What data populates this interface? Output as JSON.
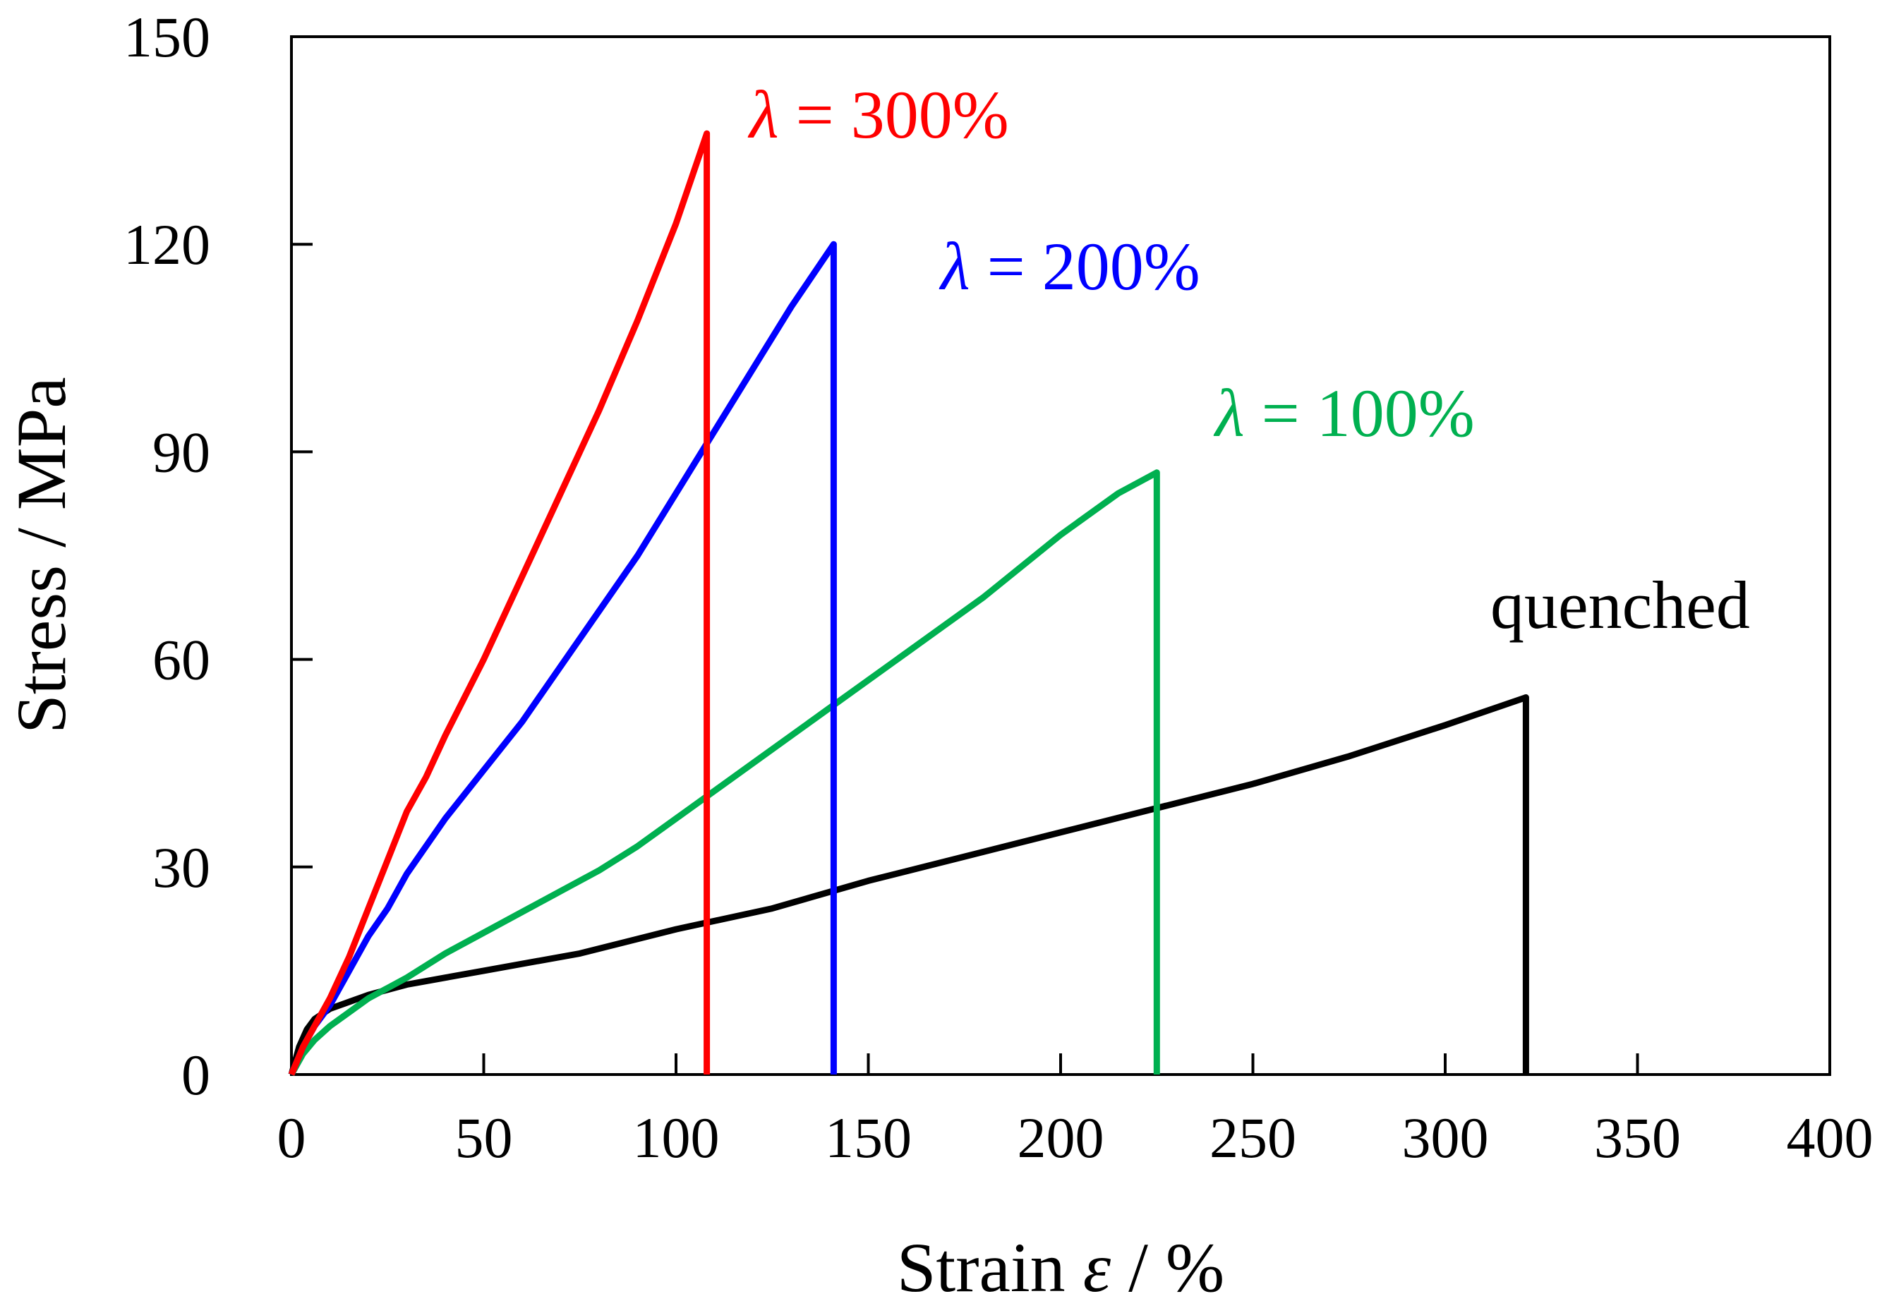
{
  "chart_data": {
    "type": "line",
    "xlabel_prefix": "Strain ",
    "xlabel_symbol": "ε",
    "xlabel_suffix": " / %",
    "ylabel": "Stress / MPa",
    "xlim": [
      0,
      400
    ],
    "ylim": [
      0,
      150
    ],
    "xticks": [
      "0",
      "50",
      "100",
      "150",
      "200",
      "250",
      "300",
      "350",
      "400"
    ],
    "yticks": [
      "0",
      "30",
      "60",
      "90",
      "120",
      "150"
    ],
    "grid": false,
    "series": [
      {
        "name": "λ = 300%",
        "symbol": "λ",
        "suffix": " = 300%",
        "color": "#ff0000",
        "x": [
          0,
          3,
          6,
          10,
          15,
          20,
          25,
          30,
          35,
          40,
          50,
          60,
          70,
          80,
          90,
          100,
          108,
          108
        ],
        "y": [
          0,
          4,
          7,
          11,
          17,
          24,
          31,
          38,
          43,
          49,
          60,
          72,
          84,
          96,
          109,
          123,
          136,
          0
        ]
      },
      {
        "name": "λ = 200%",
        "symbol": "λ",
        "suffix": " = 200%",
        "color": "#0000ff",
        "x": [
          0,
          3,
          6,
          10,
          15,
          20,
          25,
          30,
          40,
          50,
          60,
          70,
          80,
          90,
          100,
          110,
          120,
          130,
          141,
          141
        ],
        "y": [
          0,
          4,
          7,
          10,
          15,
          20,
          24,
          29,
          37,
          44,
          51,
          59,
          67,
          75,
          84,
          93,
          102,
          111,
          120,
          0
        ]
      },
      {
        "name": "λ = 100%",
        "symbol": "λ",
        "suffix": " = 100%",
        "color": "#00b050",
        "x": [
          0,
          3,
          6,
          10,
          15,
          20,
          25,
          30,
          40,
          50,
          60,
          70,
          80,
          90,
          100,
          120,
          140,
          160,
          180,
          200,
          215,
          225,
          225
        ],
        "y": [
          0,
          3,
          5,
          7,
          9,
          11,
          12.5,
          14,
          17.5,
          20.5,
          23.5,
          26.5,
          29.5,
          33,
          37,
          45,
          53,
          61,
          69,
          78,
          84,
          87,
          0
        ]
      },
      {
        "name": "quenched",
        "symbol": "",
        "suffix": "quenched",
        "color": "#000000",
        "x": [
          0,
          2,
          4,
          6,
          10,
          15,
          20,
          30,
          40,
          50,
          75,
          100,
          125,
          150,
          175,
          200,
          225,
          250,
          275,
          300,
          321,
          321
        ],
        "y": [
          0,
          4,
          6.5,
          8,
          9.5,
          10.5,
          11.5,
          13,
          14,
          15,
          17.5,
          21,
          24,
          28,
          31.5,
          35,
          38.5,
          42,
          46,
          50.5,
          54.5,
          0
        ]
      }
    ]
  }
}
